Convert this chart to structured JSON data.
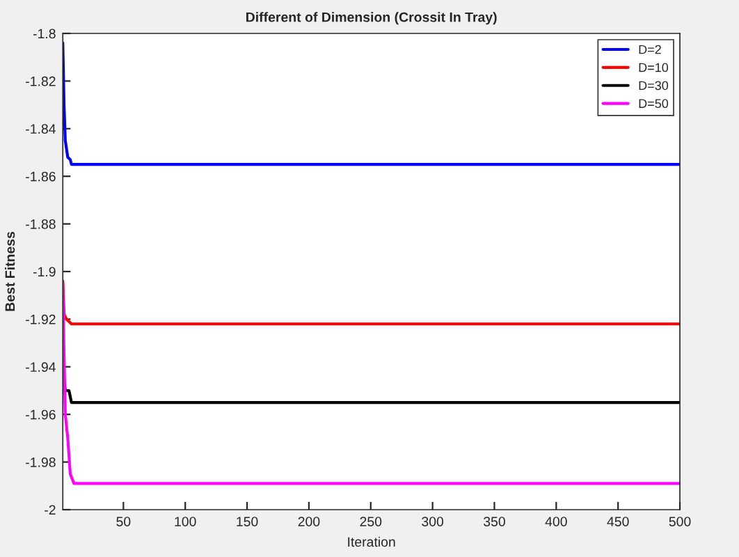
{
  "chart_data": {
    "type": "line",
    "title": "Different of Dimension (Crossit In Tray)",
    "xlabel": "Iteration",
    "ylabel": "Best Fitness",
    "series": [
      {
        "name": "D=2",
        "color": "#0000ff",
        "x": [
          1,
          2,
          3,
          5,
          7,
          8,
          500
        ],
        "values": [
          -1.804,
          -1.83,
          -1.845,
          -1.852,
          -1.853,
          -1.855,
          -1.855
        ]
      },
      {
        "name": "D=10",
        "color": "#ff0000",
        "x": [
          1,
          2,
          4,
          8,
          500
        ],
        "values": [
          -1.904,
          -1.918,
          -1.92,
          -1.922,
          -1.922
        ]
      },
      {
        "name": "D=30",
        "color": "#000000",
        "x": [
          1,
          2,
          3,
          6,
          8,
          500
        ],
        "values": [
          -1.93,
          -1.945,
          -1.95,
          -1.95,
          -1.955,
          -1.955
        ]
      },
      {
        "name": "D=50",
        "color": "#ff00ff",
        "x": [
          1,
          2,
          3,
          5,
          7,
          10,
          500
        ],
        "values": [
          -1.905,
          -1.935,
          -1.96,
          -1.97,
          -1.985,
          -1.989,
          -1.989
        ]
      }
    ],
    "xlim": [
      1,
      500
    ],
    "xticks": [
      50,
      100,
      150,
      200,
      250,
      300,
      350,
      400,
      450,
      500
    ],
    "ylim": [
      -2,
      -1.8
    ],
    "yticks": [
      -2,
      -1.98,
      -1.96,
      -1.94,
      -1.92,
      -1.9,
      -1.88,
      -1.86,
      -1.84,
      -1.82,
      -1.8
    ],
    "legend": "top right",
    "grid": false,
    "marker": "none",
    "line_style": "solid"
  }
}
